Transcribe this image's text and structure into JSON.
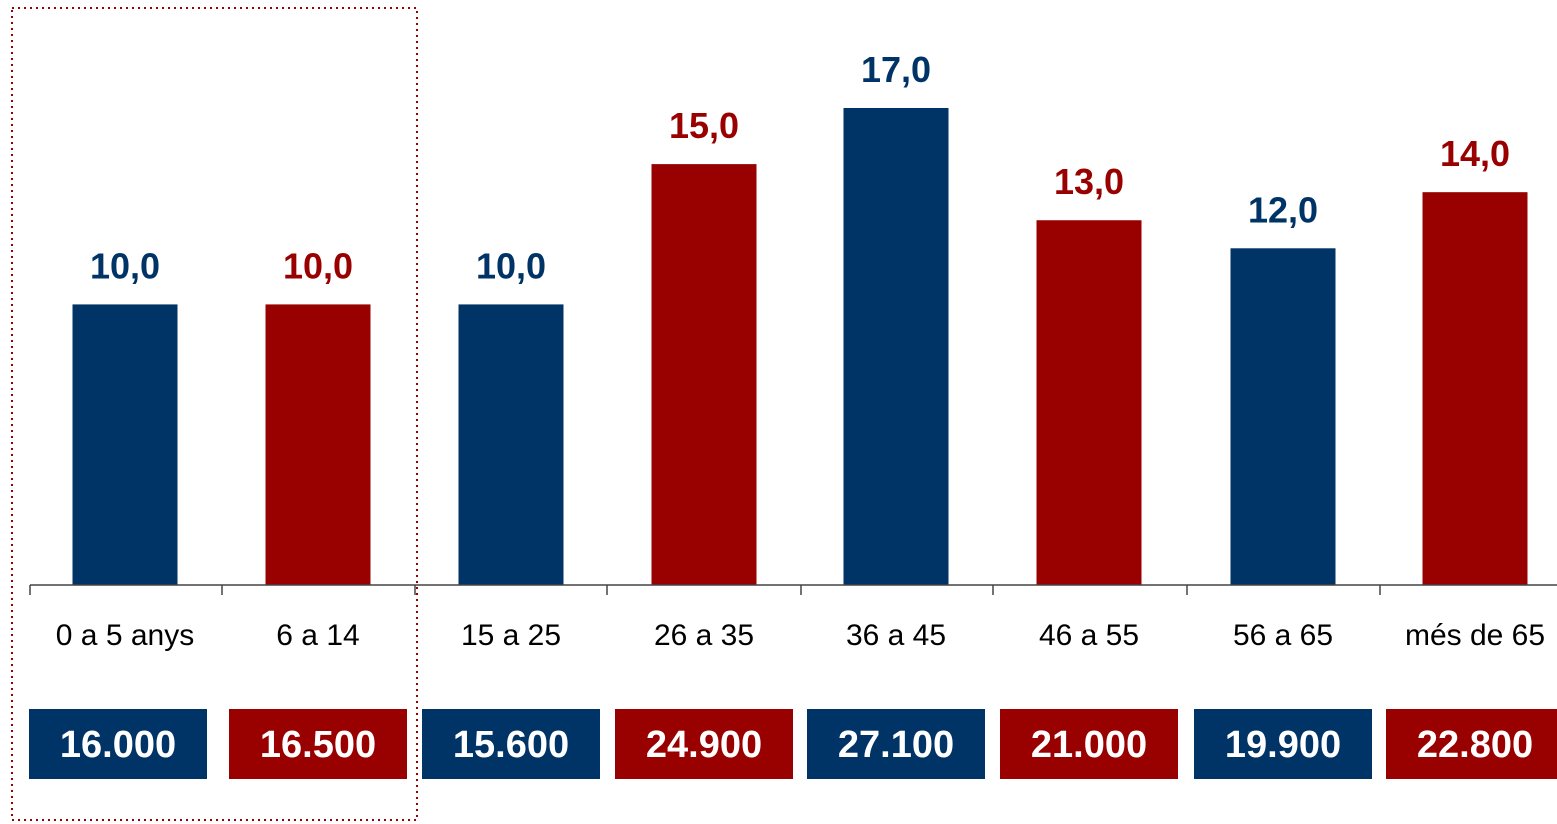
{
  "chart_data": {
    "type": "bar",
    "categories": [
      "0 a 5 anys",
      "6 a 14",
      "15 a 25",
      "26 a 35",
      "36 a 45",
      "46 a 55",
      "56 a 65",
      "més de 65"
    ],
    "values": [
      10.0,
      10.0,
      10.0,
      15.0,
      17.0,
      13.0,
      12.0,
      14.0
    ],
    "value_labels": [
      "10,0",
      "10,0",
      "10,0",
      "15,0",
      "17,0",
      "13,0",
      "12,0",
      "14,0"
    ],
    "secondary_values": [
      16000,
      16500,
      15600,
      24900,
      27100,
      21000,
      19900,
      22800
    ],
    "secondary_labels": [
      "16.000",
      "16.500",
      "15.600",
      "24.900",
      "27.100",
      "21.000",
      "19.900",
      "22.800"
    ],
    "bar_colors": [
      "#003366",
      "#990000",
      "#003366",
      "#990000",
      "#003366",
      "#990000",
      "#003366",
      "#990000"
    ],
    "title": "",
    "xlabel": "",
    "ylabel": "",
    "ylim": [
      0,
      20
    ],
    "grid": false,
    "highlight_group": [
      "0 a 5 anys",
      "6 a 14"
    ],
    "highlight_border_color": "#990000"
  }
}
